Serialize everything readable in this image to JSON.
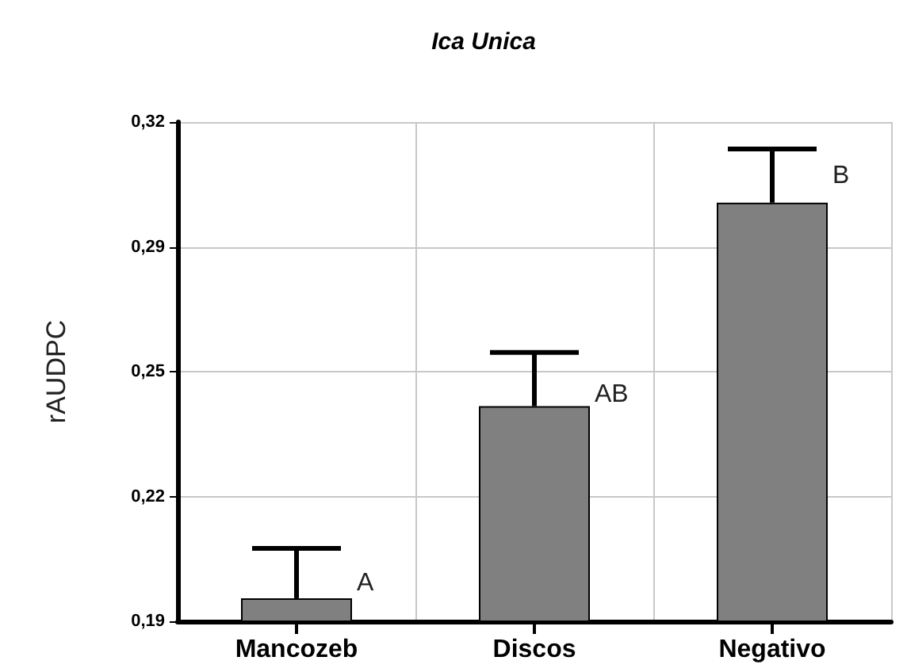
{
  "chart_data": {
    "type": "bar",
    "title": "Ica Unica",
    "ylabel": "rAUDPC",
    "categories": [
      "Mancozeb",
      "Discos",
      "Negativo"
    ],
    "values": [
      0.196,
      0.246,
      0.299
    ],
    "errors": [
      [
        0.196,
        0.209
      ],
      [
        0.246,
        0.26
      ],
      [
        0.299,
        0.313
      ]
    ],
    "color": "#808080",
    "ylim": [
      0.19,
      0.32
    ],
    "yticks": [
      {
        "value": 0.19,
        "label": "0,19"
      },
      {
        "value": 0.2225,
        "label": "0,22"
      },
      {
        "value": 0.255,
        "label": "0,25"
      },
      {
        "value": 0.2875,
        "label": "0,29"
      },
      {
        "value": 0.32,
        "label": "0,32"
      }
    ],
    "grid": true,
    "annotations": [
      {
        "text": "A",
        "x": "Mancozeb",
        "y": 0.2
      },
      {
        "text": "AB",
        "x": "Discos",
        "y": 0.249
      },
      {
        "text": "B",
        "x": "Negativo",
        "y": 0.306
      }
    ]
  }
}
